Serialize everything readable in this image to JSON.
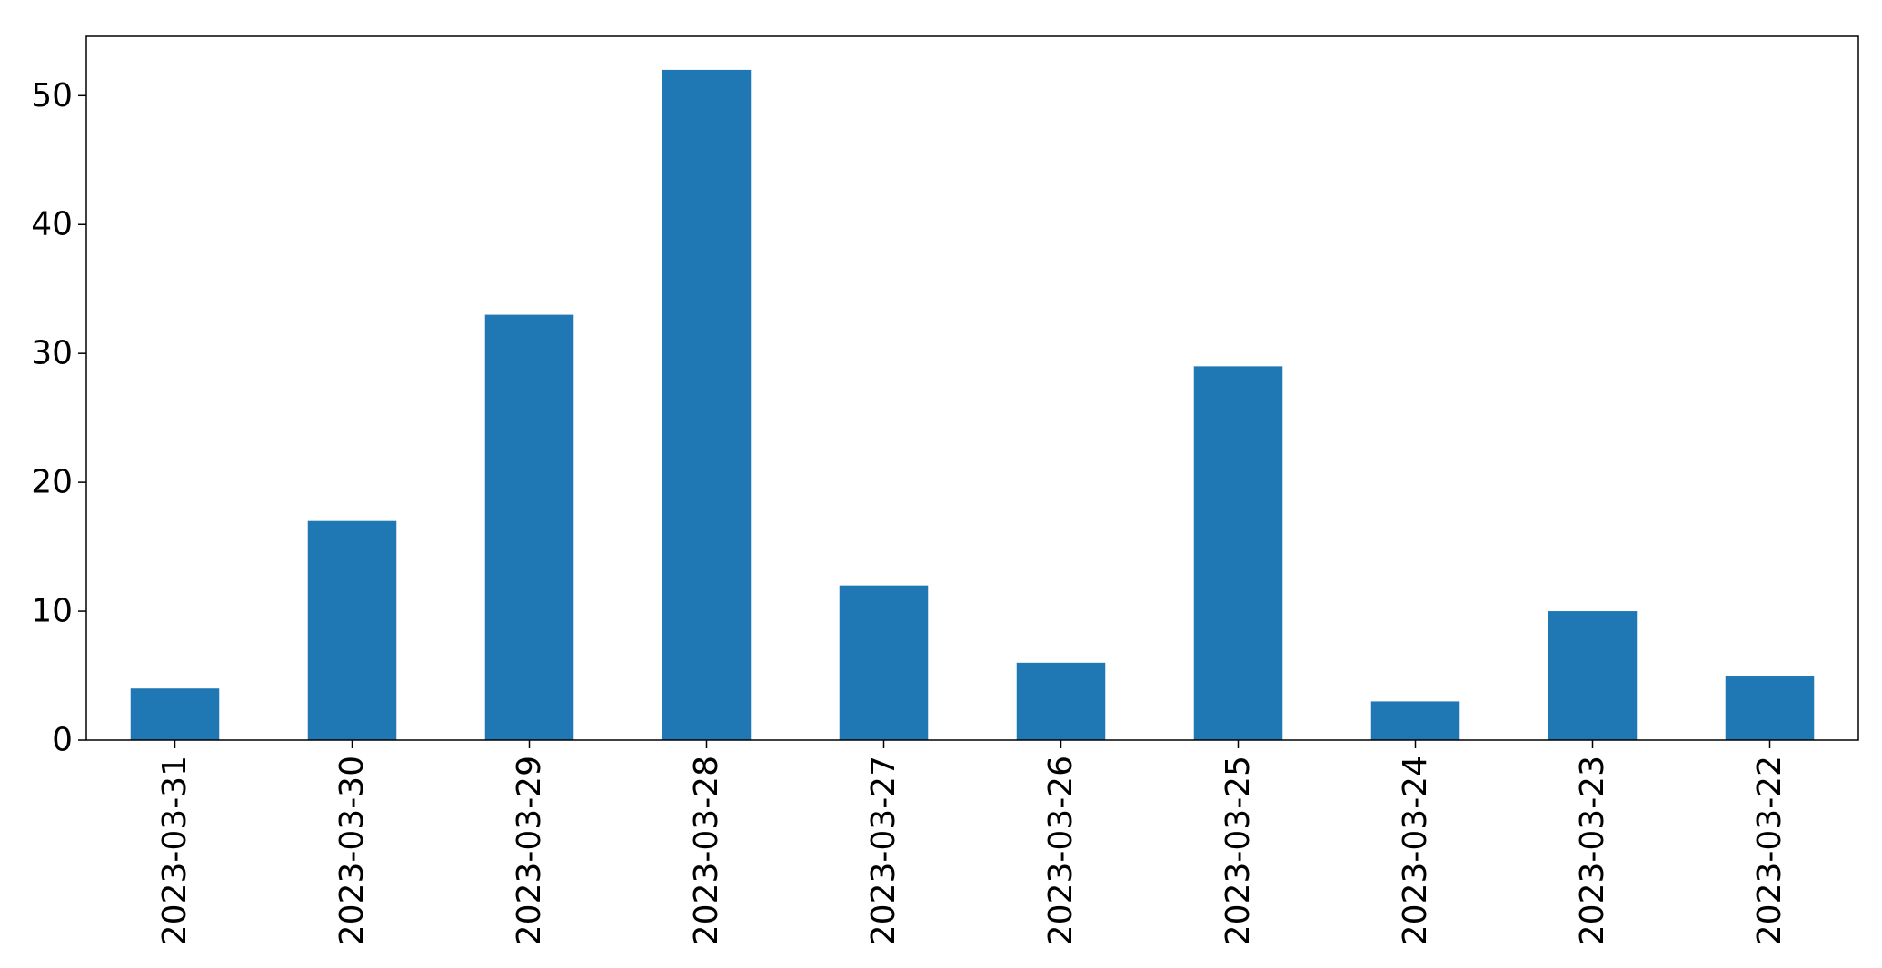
{
  "chart_data": {
    "type": "bar",
    "title": "",
    "xlabel": "",
    "ylabel": "",
    "categories": [
      "2023-03-31",
      "2023-03-30",
      "2023-03-29",
      "2023-03-28",
      "2023-03-27",
      "2023-03-26",
      "2023-03-25",
      "2023-03-24",
      "2023-03-23",
      "2023-03-22"
    ],
    "values": [
      4,
      17,
      33,
      52,
      12,
      6,
      29,
      3,
      10,
      5
    ],
    "ylim": [
      0,
      54.6
    ],
    "yticks": [
      0,
      10,
      20,
      30,
      40,
      50
    ],
    "grid": false,
    "legend": "none",
    "colors": {
      "bar": "#1f77b4",
      "axis": "#000000",
      "background": "#ffffff"
    }
  }
}
